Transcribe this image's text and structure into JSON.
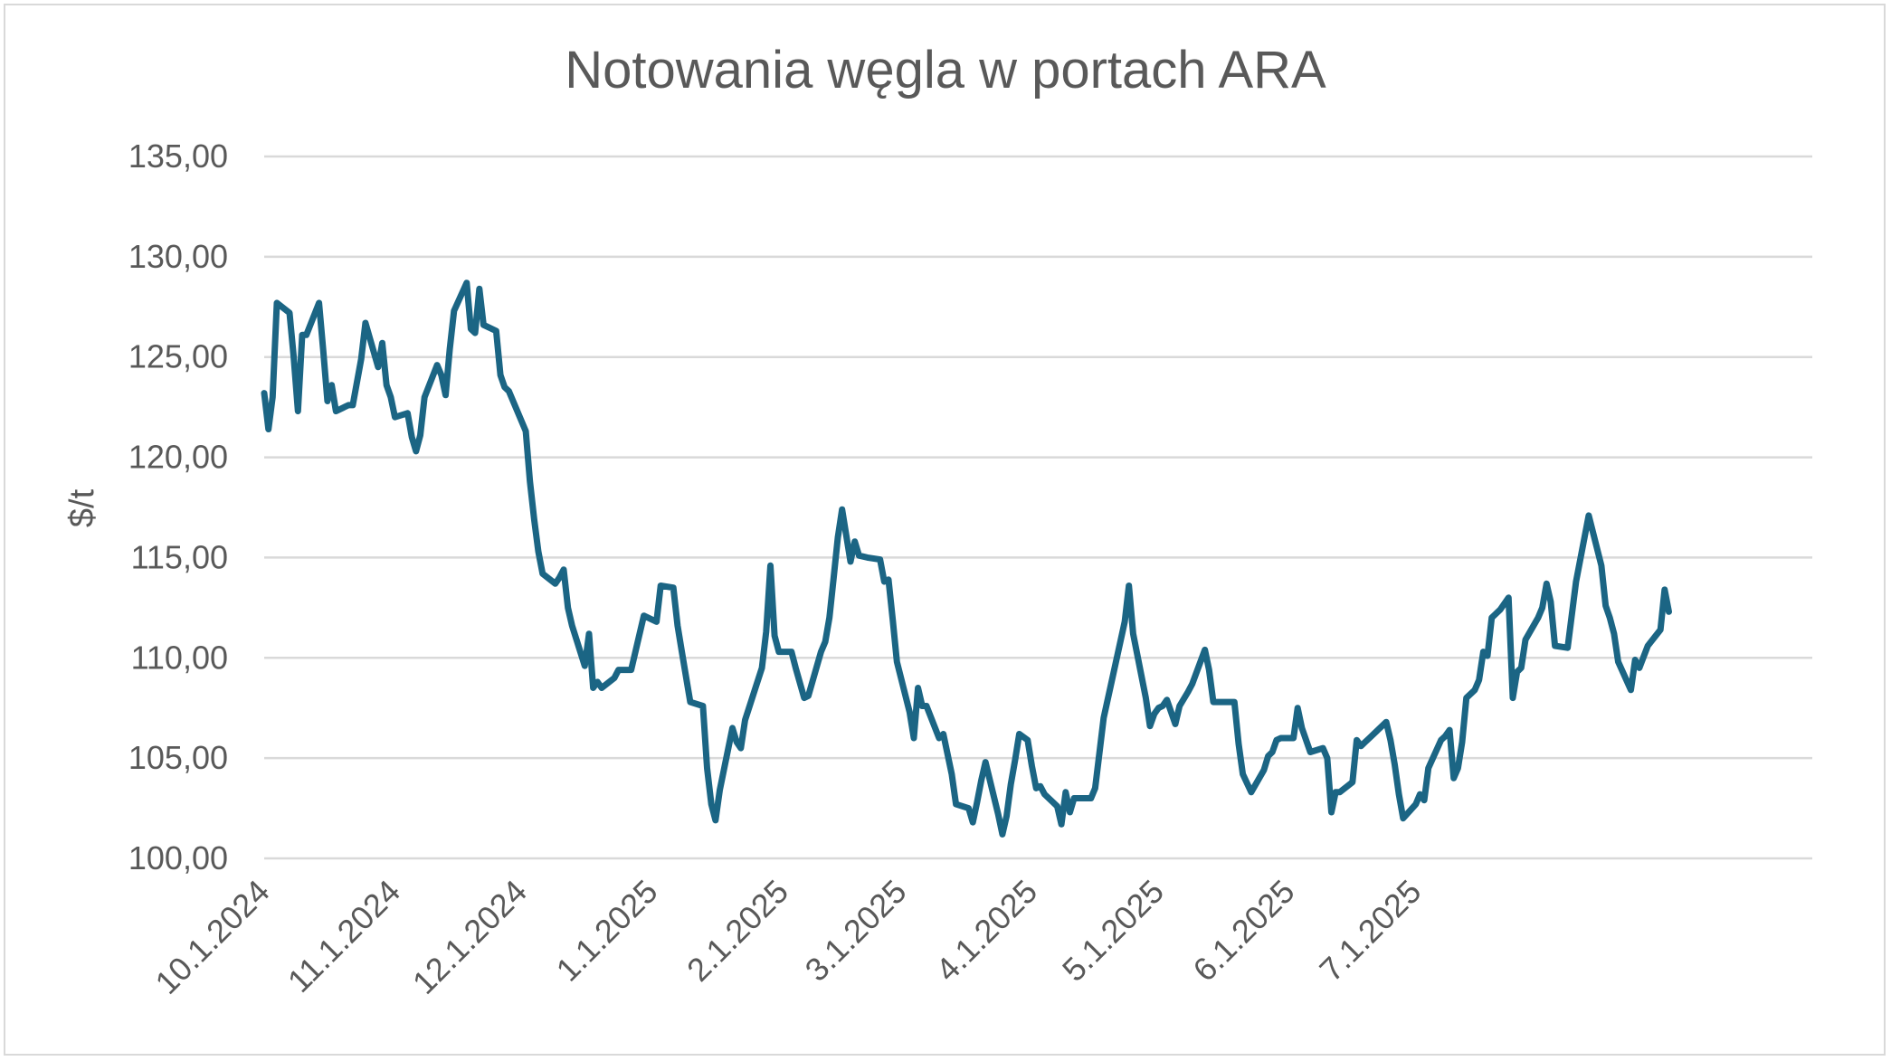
{
  "chart_data": {
    "type": "line",
    "title": "Notowania węgla w portach ARA",
    "xlabel": "",
    "ylabel": "$/t",
    "ylim": [
      100,
      135
    ],
    "y_ticks": [
      "100,00",
      "105,00",
      "110,00",
      "115,00",
      "120,00",
      "125,00",
      "130,00",
      "135,00"
    ],
    "y_tick_values": [
      100,
      105,
      110,
      115,
      120,
      125,
      130,
      135
    ],
    "x_range": [
      "2024-10-01",
      "2025-10-03"
    ],
    "x_ticks": [
      {
        "label": "10.1.2024",
        "date": "2024-10-01"
      },
      {
        "label": "11.1.2024",
        "date": "2024-11-01"
      },
      {
        "label": "12.1.2024",
        "date": "2024-12-01"
      },
      {
        "label": "1.1.2025",
        "date": "2025-01-01"
      },
      {
        "label": "2.1.2025",
        "date": "2025-02-01"
      },
      {
        "label": "3.1.2025",
        "date": "2025-03-01"
      },
      {
        "label": "4.1.2025",
        "date": "2025-04-01"
      },
      {
        "label": "5.1.2025",
        "date": "2025-05-01"
      },
      {
        "label": "6.1.2025",
        "date": "2025-06-01"
      },
      {
        "label": "7.1.2025",
        "date": "2025-07-01"
      }
    ],
    "grid": true,
    "legend": "none",
    "series": [
      {
        "color": "#1b6584",
        "points": [
          [
            "2024-10-01",
            123.2
          ],
          [
            "2024-10-02",
            121.4
          ],
          [
            "2024-10-03",
            123.0
          ],
          [
            "2024-10-04",
            127.7
          ],
          [
            "2024-10-07",
            127.2
          ],
          [
            "2024-10-08",
            125.0
          ],
          [
            "2024-10-09",
            122.3
          ],
          [
            "2024-10-10",
            126.1
          ],
          [
            "2024-10-11",
            126.1
          ],
          [
            "2024-10-14",
            127.7
          ],
          [
            "2024-10-15",
            125.3
          ],
          [
            "2024-10-16",
            122.8
          ],
          [
            "2024-10-17",
            123.6
          ],
          [
            "2024-10-18",
            122.3
          ],
          [
            "2024-10-21",
            122.6
          ],
          [
            "2024-10-22",
            122.6
          ],
          [
            "2024-10-24",
            124.9
          ],
          [
            "2024-10-25",
            126.7
          ],
          [
            "2024-10-28",
            124.5
          ],
          [
            "2024-10-29",
            125.7
          ],
          [
            "2024-10-30",
            123.6
          ],
          [
            "2024-10-31",
            123.0
          ],
          [
            "2024-11-01",
            122.0
          ],
          [
            "2024-11-04",
            122.2
          ],
          [
            "2024-11-05",
            121.0
          ],
          [
            "2024-11-06",
            120.3
          ],
          [
            "2024-11-07",
            121.1
          ],
          [
            "2024-11-08",
            123.0
          ],
          [
            "2024-11-11",
            124.6
          ],
          [
            "2024-11-12",
            124.1
          ],
          [
            "2024-11-13",
            123.1
          ],
          [
            "2024-11-14",
            125.4
          ],
          [
            "2024-11-15",
            127.3
          ],
          [
            "2024-11-18",
            128.7
          ],
          [
            "2024-11-19",
            126.4
          ],
          [
            "2024-11-20",
            126.2
          ],
          [
            "2024-11-21",
            128.4
          ],
          [
            "2024-11-22",
            126.6
          ],
          [
            "2024-11-25",
            126.3
          ],
          [
            "2024-11-26",
            124.1
          ],
          [
            "2024-11-27",
            123.5
          ],
          [
            "2024-11-28",
            123.3
          ],
          [
            "2024-12-02",
            121.3
          ],
          [
            "2024-12-03",
            118.8
          ],
          [
            "2024-12-04",
            116.9
          ],
          [
            "2024-12-05",
            115.3
          ],
          [
            "2024-12-06",
            114.2
          ],
          [
            "2024-12-09",
            113.7
          ],
          [
            "2024-12-10",
            114.0
          ],
          [
            "2024-12-11",
            114.4
          ],
          [
            "2024-12-12",
            112.5
          ],
          [
            "2024-12-13",
            111.6
          ],
          [
            "2024-12-16",
            109.6
          ],
          [
            "2024-12-17",
            111.2
          ],
          [
            "2024-12-18",
            108.5
          ],
          [
            "2024-12-19",
            108.8
          ],
          [
            "2024-12-20",
            108.5
          ],
          [
            "2024-12-23",
            109.0
          ],
          [
            "2024-12-24",
            109.4
          ],
          [
            "2024-12-27",
            109.4
          ],
          [
            "2024-12-30",
            112.1
          ],
          [
            "2025-01-02",
            111.8
          ],
          [
            "2025-01-03",
            113.6
          ],
          [
            "2025-01-06",
            113.5
          ],
          [
            "2025-01-07",
            111.6
          ],
          [
            "2025-01-08",
            110.3
          ],
          [
            "2025-01-10",
            107.8
          ],
          [
            "2025-01-13",
            107.6
          ],
          [
            "2025-01-14",
            104.5
          ],
          [
            "2025-01-15",
            102.7
          ],
          [
            "2025-01-16",
            101.9
          ],
          [
            "2025-01-17",
            103.4
          ],
          [
            "2025-01-20",
            106.5
          ],
          [
            "2025-01-21",
            105.8
          ],
          [
            "2025-01-22",
            105.5
          ],
          [
            "2025-01-23",
            106.9
          ],
          [
            "2025-01-27",
            109.5
          ],
          [
            "2025-01-28",
            111.3
          ],
          [
            "2025-01-29",
            114.6
          ],
          [
            "2025-01-30",
            111.1
          ],
          [
            "2025-01-31",
            110.3
          ],
          [
            "2025-02-03",
            110.3
          ],
          [
            "2025-02-04",
            109.5
          ],
          [
            "2025-02-06",
            108.0
          ],
          [
            "2025-02-07",
            108.1
          ],
          [
            "2025-02-10",
            110.3
          ],
          [
            "2025-02-11",
            110.8
          ],
          [
            "2025-02-12",
            112.0
          ],
          [
            "2025-02-13",
            114.0
          ],
          [
            "2025-02-14",
            116.0
          ],
          [
            "2025-02-15",
            117.4
          ],
          [
            "2025-02-17",
            114.8
          ],
          [
            "2025-02-18",
            115.8
          ],
          [
            "2025-02-19",
            115.1
          ],
          [
            "2025-02-21",
            115.0
          ],
          [
            "2025-02-24",
            114.9
          ],
          [
            "2025-02-25",
            113.8
          ],
          [
            "2025-02-26",
            113.9
          ],
          [
            "2025-02-27",
            111.9
          ],
          [
            "2025-02-28",
            109.8
          ],
          [
            "2025-03-03",
            107.3
          ],
          [
            "2025-03-04",
            106.0
          ],
          [
            "2025-03-05",
            108.5
          ],
          [
            "2025-03-06",
            107.6
          ],
          [
            "2025-03-07",
            107.6
          ],
          [
            "2025-03-10",
            106.0
          ],
          [
            "2025-03-11",
            106.2
          ],
          [
            "2025-03-13",
            104.2
          ],
          [
            "2025-03-14",
            102.7
          ],
          [
            "2025-03-17",
            102.5
          ],
          [
            "2025-03-18",
            101.8
          ],
          [
            "2025-03-19",
            102.8
          ],
          [
            "2025-03-20",
            103.9
          ],
          [
            "2025-03-21",
            104.8
          ],
          [
            "2025-03-24",
            102.2
          ],
          [
            "2025-03-25",
            101.2
          ],
          [
            "2025-03-26",
            102.1
          ],
          [
            "2025-03-27",
            103.7
          ],
          [
            "2025-03-28",
            104.9
          ],
          [
            "2025-03-29",
            106.2
          ],
          [
            "2025-03-31",
            105.9
          ],
          [
            "2025-04-01",
            104.6
          ],
          [
            "2025-04-02",
            103.5
          ],
          [
            "2025-04-03",
            103.6
          ],
          [
            "2025-04-04",
            103.2
          ],
          [
            "2025-04-07",
            102.6
          ],
          [
            "2025-04-08",
            101.7
          ],
          [
            "2025-04-09",
            103.3
          ],
          [
            "2025-04-10",
            102.3
          ],
          [
            "2025-04-11",
            103.0
          ],
          [
            "2025-04-14",
            103.0
          ],
          [
            "2025-04-15",
            103.0
          ],
          [
            "2025-04-16",
            103.5
          ],
          [
            "2025-04-18",
            107.0
          ],
          [
            "2025-04-23",
            111.8
          ],
          [
            "2025-04-24",
            113.6
          ],
          [
            "2025-04-25",
            111.2
          ],
          [
            "2025-04-28",
            108.0
          ],
          [
            "2025-04-29",
            106.6
          ],
          [
            "2025-04-30",
            107.2
          ],
          [
            "2025-05-01",
            107.5
          ],
          [
            "2025-05-02",
            107.6
          ],
          [
            "2025-05-03",
            107.9
          ],
          [
            "2025-05-05",
            106.7
          ],
          [
            "2025-05-06",
            107.6
          ],
          [
            "2025-05-08",
            108.3
          ],
          [
            "2025-05-09",
            108.7
          ],
          [
            "2025-05-12",
            110.4
          ],
          [
            "2025-05-13",
            109.4
          ],
          [
            "2025-05-14",
            107.8
          ],
          [
            "2025-05-16",
            107.8
          ],
          [
            "2025-05-19",
            107.8
          ],
          [
            "2025-05-20",
            105.7
          ],
          [
            "2025-05-21",
            104.2
          ],
          [
            "2025-05-23",
            103.3
          ],
          [
            "2025-05-26",
            104.4
          ],
          [
            "2025-05-27",
            105.1
          ],
          [
            "2025-05-28",
            105.3
          ],
          [
            "2025-05-29",
            105.9
          ],
          [
            "2025-05-30",
            106.0
          ],
          [
            "2025-06-02",
            106.0
          ],
          [
            "2025-06-03",
            107.5
          ],
          [
            "2025-06-04",
            106.5
          ],
          [
            "2025-06-06",
            105.3
          ],
          [
            "2025-06-09",
            105.5
          ],
          [
            "2025-06-10",
            105.0
          ],
          [
            "2025-06-11",
            102.3
          ],
          [
            "2025-06-12",
            103.3
          ],
          [
            "2025-06-13",
            103.3
          ],
          [
            "2025-06-16",
            103.8
          ],
          [
            "2025-06-17",
            105.9
          ],
          [
            "2025-06-18",
            105.6
          ],
          [
            "2025-06-19",
            105.8
          ],
          [
            "2025-06-20",
            106.0
          ],
          [
            "2025-06-24",
            106.8
          ],
          [
            "2025-06-25",
            105.9
          ],
          [
            "2025-06-26",
            104.7
          ],
          [
            "2025-06-27",
            103.2
          ],
          [
            "2025-06-28",
            102.0
          ],
          [
            "2025-07-01",
            102.7
          ],
          [
            "2025-07-02",
            103.2
          ],
          [
            "2025-07-03",
            102.9
          ],
          [
            "2025-07-04",
            104.5
          ],
          [
            "2025-07-07",
            105.9
          ],
          [
            "2025-07-08",
            106.1
          ],
          [
            "2025-07-09",
            106.4
          ],
          [
            "2025-07-10",
            104.0
          ],
          [
            "2025-07-11",
            104.5
          ],
          [
            "2025-07-12",
            105.8
          ],
          [
            "2025-07-13",
            108.0
          ],
          [
            "2025-07-15",
            108.4
          ],
          [
            "2025-07-16",
            108.9
          ],
          [
            "2025-07-17",
            110.3
          ],
          [
            "2025-07-18",
            110.1
          ],
          [
            "2025-07-19",
            112.0
          ],
          [
            "2025-07-21",
            112.4
          ],
          [
            "2025-07-23",
            113.0
          ],
          [
            "2025-07-24",
            108.0
          ],
          [
            "2025-07-25",
            109.3
          ],
          [
            "2025-07-26",
            109.5
          ],
          [
            "2025-07-27",
            110.9
          ],
          [
            "2025-07-30",
            112.0
          ],
          [
            "2025-07-31",
            112.5
          ],
          [
            "2025-08-01",
            113.7
          ],
          [
            "2025-08-02",
            112.8
          ],
          [
            "2025-08-03",
            110.6
          ],
          [
            "2025-08-06",
            110.5
          ],
          [
            "2025-08-08",
            113.8
          ],
          [
            "2025-08-11",
            117.1
          ],
          [
            "2025-08-14",
            114.6
          ],
          [
            "2025-08-15",
            112.6
          ],
          [
            "2025-08-16",
            112.0
          ],
          [
            "2025-08-17",
            111.2
          ],
          [
            "2025-08-18",
            109.8
          ],
          [
            "2025-08-21",
            108.4
          ],
          [
            "2025-08-22",
            109.9
          ],
          [
            "2025-08-23",
            109.5
          ],
          [
            "2025-08-25",
            110.6
          ],
          [
            "2025-08-28",
            111.4
          ],
          [
            "2025-08-29",
            113.4
          ],
          [
            "2025-08-30",
            112.3
          ]
        ]
      }
    ]
  }
}
